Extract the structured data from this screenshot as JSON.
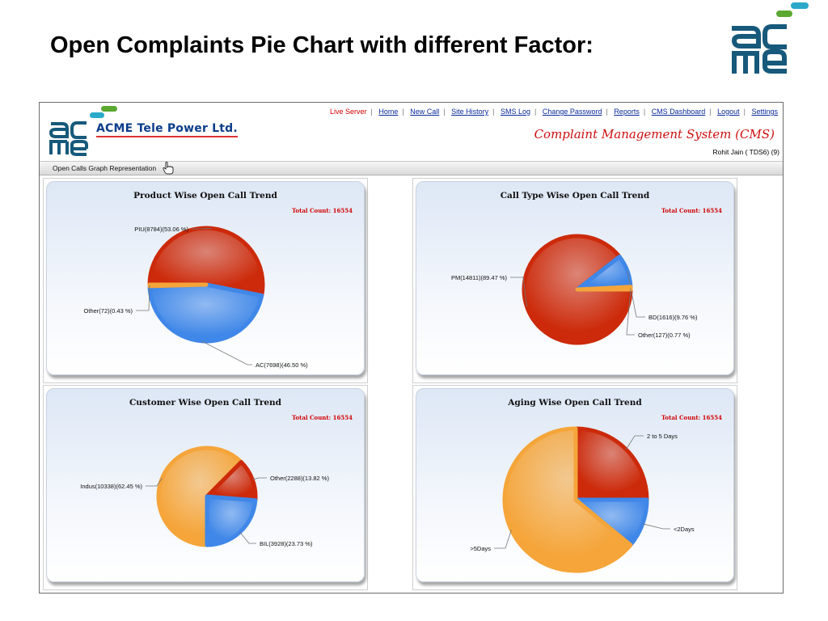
{
  "slide_title": "Open Complaints Pie Chart with different Factor:",
  "app": {
    "company": "ACME Tele Power Ltd.",
    "nav": {
      "live_server": "Live Server",
      "links": [
        "Home",
        "New Call",
        "Site History",
        "SMS Log",
        "Change Password",
        "Reports",
        "CMS Dashboard",
        "Logout",
        "Settings"
      ]
    },
    "cms_title": "Complaint Management System (CMS)",
    "user": "Rohit Jain ( TDS6) (9)",
    "tab": "Open Calls Graph Representation"
  },
  "colors": {
    "red": "#cc2a0a",
    "blue": "#3f87e8",
    "orange": "#f5a53a",
    "total_text": "#d10000",
    "logo_blue": "#16597b",
    "logo_green": "#5aa830",
    "logo_teal": "#2aa9c9"
  },
  "chart_data": [
    {
      "type": "pie",
      "title": "Product Wise Open Call Trend",
      "total_label": "Total Count: 16554",
      "slices": [
        {
          "name": "PIU",
          "value": 8784,
          "percent": 53.06,
          "label": "PIU(8784)(53.06 %)",
          "color": "red"
        },
        {
          "name": "AC",
          "value": 7698,
          "percent": 46.5,
          "label": "AC(7698)(46.50 %)",
          "color": "blue"
        },
        {
          "name": "Other",
          "value": 72,
          "percent": 0.43,
          "label": "Other(72)(0.43 %)",
          "color": "orange"
        }
      ]
    },
    {
      "type": "pie",
      "title": "Call Type Wise Open Call Trend",
      "total_label": "Total Count: 16554",
      "slices": [
        {
          "name": "PM",
          "value": 14811,
          "percent": 89.47,
          "label": "PM(14811)(89.47 %)",
          "color": "red"
        },
        {
          "name": "BD",
          "value": 1616,
          "percent": 9.76,
          "label": "BD(1616)(9.76 %)",
          "color": "blue"
        },
        {
          "name": "Other",
          "value": 127,
          "percent": 0.77,
          "label": "Other(127)(0.77 %)",
          "color": "orange"
        }
      ]
    },
    {
      "type": "pie",
      "title": "Customer Wise Open Call Trend",
      "total_label": "Total Count: 16554",
      "slices": [
        {
          "name": "Indus",
          "value": 10338,
          "percent": 62.45,
          "label": "Indus(10338)(62.45 %)",
          "color": "orange"
        },
        {
          "name": "Other",
          "value": 2288,
          "percent": 13.82,
          "label": "Other(2288)(13.82 %)",
          "color": "red"
        },
        {
          "name": "BIL",
          "value": 3928,
          "percent": 23.73,
          "label": "BIL(3928)(23.73 %)",
          "color": "blue"
        }
      ]
    },
    {
      "type": "pie",
      "title": "Aging Wise Open Call Trend",
      "total_label": "Total Count: 16554",
      "slices": [
        {
          "name": "2 to 5 Days",
          "percent": 25,
          "label": "2 to 5 Days",
          "color": "red"
        },
        {
          "name": "<2Days",
          "percent": 11,
          "label": "<2Days",
          "color": "blue"
        },
        {
          "name": ">5Days",
          "percent": 64,
          "label": ">5Days",
          "color": "orange"
        }
      ]
    }
  ]
}
